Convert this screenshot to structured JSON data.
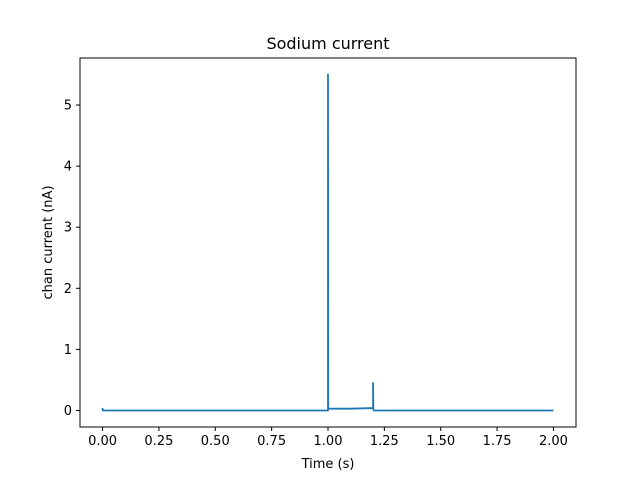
{
  "chart_data": {
    "type": "line",
    "title": "Sodium current",
    "xlabel": "Time (s)",
    "ylabel": "chan current (nA)",
    "xlim": [
      -0.1,
      2.1
    ],
    "ylim": [
      -0.27,
      5.77
    ],
    "grid": false,
    "x_ticks": [
      0.0,
      0.25,
      0.5,
      0.75,
      1.0,
      1.25,
      1.5,
      1.75,
      2.0
    ],
    "x_tick_labels": [
      "0.00",
      "0.25",
      "0.50",
      "0.75",
      "1.00",
      "1.25",
      "1.50",
      "1.75",
      "2.00"
    ],
    "y_ticks": [
      0,
      1,
      2,
      3,
      4,
      5
    ],
    "y_tick_labels": [
      "0",
      "1",
      "2",
      "3",
      "4",
      "5"
    ],
    "series": [
      {
        "color": "#1f77b4",
        "x": [
          0.0,
          0.0,
          0.002,
          0.005,
          0.01,
          0.5,
          0.999,
          1.0,
          1.0,
          1.001,
          1.003,
          1.1,
          1.199,
          1.2,
          1.2,
          1.201,
          1.203,
          1.6,
          2.0
        ],
        "y": [
          0.0,
          0.03,
          0.0,
          0.0,
          0.0,
          0.0,
          0.0,
          0.0,
          5.5,
          0.05,
          0.03,
          0.03,
          0.04,
          0.04,
          0.45,
          0.02,
          0.0,
          0.0,
          0.0
        ]
      }
    ]
  }
}
